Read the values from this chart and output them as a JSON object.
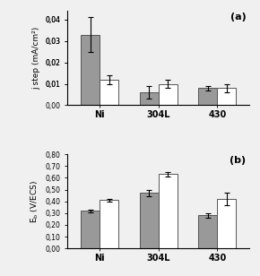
{
  "categories": [
    "Ni",
    "304L",
    "430"
  ],
  "chart_a": {
    "title": "(a)",
    "ylabel": "j step (mA/cm²)",
    "ylim": [
      0.0,
      0.044
    ],
    "yticks": [
      0.0,
      0.01,
      0.01,
      0.02,
      0.02,
      0.03,
      0.03,
      0.04,
      0.04
    ],
    "ytick_labels": [
      "0,00",
      "0,01",
      "0,01",
      "0,02",
      "0,02",
      "0,03",
      "0,03",
      "0,04",
      "0,04"
    ],
    "gray_values": [
      0.033,
      0.006,
      0.008
    ],
    "white_values": [
      0.012,
      0.01,
      0.008
    ],
    "gray_errors": [
      0.008,
      0.003,
      0.001
    ],
    "white_errors": [
      0.002,
      0.002,
      0.002
    ]
  },
  "chart_b": {
    "title": "(b)",
    "ylabel": "E_b (V/ECS)",
    "ylim": [
      0.0,
      0.8
    ],
    "yticks": [
      0.0,
      0.1,
      0.2,
      0.3,
      0.4,
      0.5,
      0.6,
      0.7,
      0.8
    ],
    "ytick_labels": [
      "0,00",
      "0,10",
      "0,20",
      "0,30",
      "0,40",
      "0,50",
      "0,60",
      "0,70",
      "0,80"
    ],
    "gray_values": [
      0.32,
      0.47,
      0.28
    ],
    "white_values": [
      0.41,
      0.63,
      0.42
    ],
    "gray_errors": [
      0.012,
      0.03,
      0.018
    ],
    "white_errors": [
      0.01,
      0.018,
      0.05
    ]
  },
  "bar_width": 0.32,
  "gray_color": "#999999",
  "white_color": "#ffffff",
  "edge_color": "#555555",
  "background_color": "#f0f0f0"
}
